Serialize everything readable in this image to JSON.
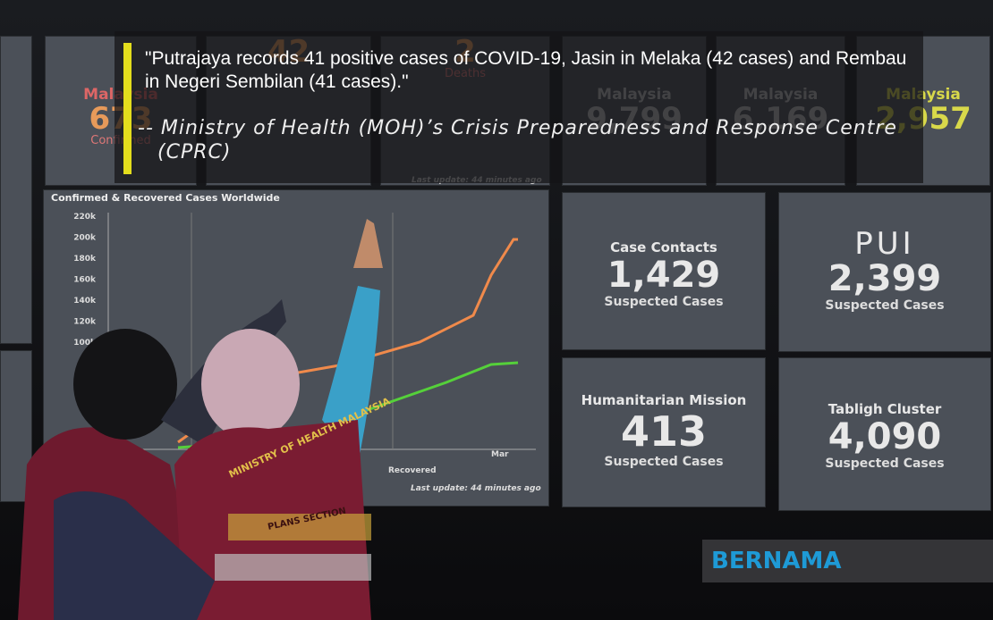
{
  "quote": {
    "text": "\"Putrajaya records 41 positive cases of COVID-19, Jasin in Melaka (42 cases) and Rembau in Negeri Sembilan (41 cases).\"",
    "attribution": "-- Ministry of Health (MOH)’s Crisis Preparedness and Response Centre (CPRC)"
  },
  "top_panels": [
    {
      "label": "Malaysia",
      "value": "673",
      "caption": "Confirmed"
    },
    {
      "label": "",
      "value": "42",
      "caption": ""
    },
    {
      "label": "",
      "value": "2",
      "caption": "Deaths"
    },
    {
      "label": "Malaysia",
      "value": "9,799",
      "caption": ""
    },
    {
      "label": "Malaysia",
      "value": "6,169",
      "caption": ""
    },
    {
      "label": "Malaysia",
      "value": "2,957",
      "caption": ""
    }
  ],
  "top_update": "Last update: 44 minutes ago",
  "chart": {
    "title": "Confirmed & Recovered Cases Worldwide",
    "yticks": [
      "220k",
      "200k",
      "180k",
      "160k",
      "140k",
      "120k",
      "100k"
    ],
    "xlabel": "Mar",
    "legend": "Recovered",
    "update": "Last update: 44 minutes ago"
  },
  "stat_panels": [
    {
      "title": "Case Contacts",
      "value": "1,429",
      "caption": "Suspected Cases"
    },
    {
      "title": "PUI",
      "value": "2,399",
      "caption": "Suspected Cases"
    },
    {
      "title": "Humanitarian Mission",
      "value": "413",
      "caption": "Suspected Cases"
    },
    {
      "title": "Tabligh Cluster",
      "value": "4,090",
      "caption": "Suspected Cases"
    }
  ],
  "vest": {
    "line1": "MINISTRY OF HEALTH MALAYSIA",
    "line2": "PLANS SECTION"
  },
  "logo": "BERNAMA"
}
